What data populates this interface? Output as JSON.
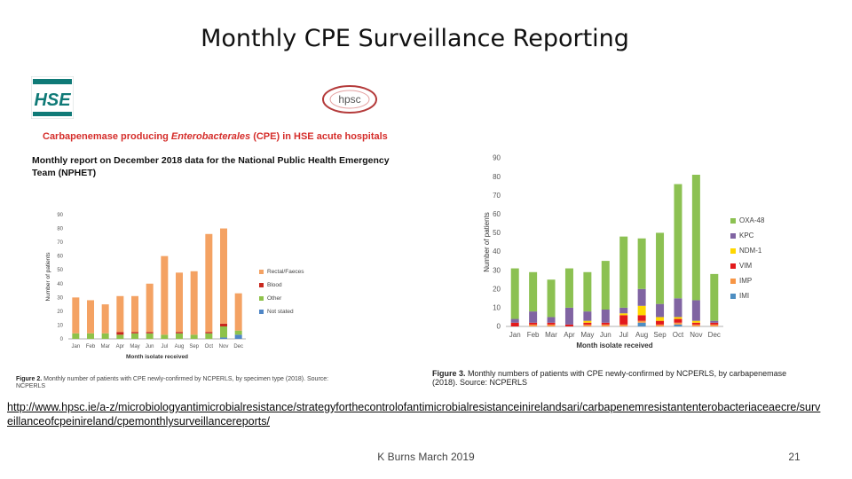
{
  "slide": {
    "title": "Monthly CPE Surveillance Reporting",
    "url": "http://www.hpsc.ie/a-z/microbiologyantimicrobialresistance/strategyforthecontrolofantimicrobialresistanceinirelandsari/carbapenemresistantenterobacteriaceaecre/surveillanceofcpeinireland/cpemonthlysurveillancereports/",
    "footer": "K Burns March 2019",
    "page_number": "21"
  },
  "report": {
    "hse_logo_text": "HSE",
    "hpsc_logo_text": "hpsc",
    "heading_prefix": "Carbapenemase producing ",
    "heading_italic": "Enterobacterales",
    "heading_suffix": " (CPE) in HSE acute hospitals",
    "subheading": "Monthly report on December 2018 data for the National Public Health Emergency Team (NPHET)"
  },
  "colors": {
    "orange": "#f4a263",
    "red": "#c8281e",
    "green_other": "#8ec24a",
    "blue": "#4f86c6",
    "oxa": "#8cc152",
    "kpc": "#8064a2",
    "ndm": "#ffd700",
    "vim": "#e31a1c",
    "imp": "#f79646",
    "imi": "#4e8ec2"
  },
  "chart_data": [
    {
      "type": "bar",
      "stacked": true,
      "title": "",
      "xlabel": "Month isolate received",
      "ylabel": "Number of patients",
      "ylim": [
        0,
        90
      ],
      "yticks": [
        0,
        10,
        20,
        30,
        40,
        50,
        60,
        70,
        80,
        90
      ],
      "categories": [
        "Jan",
        "Feb",
        "Mar",
        "Apr",
        "May",
        "Jun",
        "Jul",
        "Aug",
        "Sep",
        "Oct",
        "Nov",
        "Dec"
      ],
      "series": [
        {
          "name": "Not stated",
          "color": "#4f86c6",
          "values": [
            0,
            0,
            0,
            0,
            0,
            0,
            0,
            0,
            0,
            0,
            1,
            3
          ]
        },
        {
          "name": "Other",
          "color": "#8ec24a",
          "values": [
            4,
            4,
            4,
            3,
            4,
            4,
            3,
            4,
            3,
            4,
            8,
            3
          ]
        },
        {
          "name": "Blood",
          "color": "#c8281e",
          "values": [
            0,
            0,
            0,
            2,
            1,
            1,
            0,
            1,
            0,
            1,
            2,
            0
          ]
        },
        {
          "name": "Rectal/Faeces",
          "color": "#f4a263",
          "values": [
            26,
            24,
            21,
            26,
            26,
            35,
            57,
            43,
            46,
            71,
            69,
            27
          ]
        }
      ],
      "legend": [
        "Rectal/Faeces",
        "Blood",
        "Other",
        "Not stated"
      ],
      "legend_position": "right",
      "caption_label": "Figure 2.",
      "caption": " Monthly number of patients with CPE newly-confirmed by NCPERLS, by specimen type (2018). Source: NCPERLS"
    },
    {
      "type": "bar",
      "stacked": true,
      "title": "",
      "xlabel": "Month isolate received",
      "ylabel": "Number of patients",
      "ylim": [
        0,
        90
      ],
      "yticks": [
        0,
        10,
        20,
        30,
        40,
        50,
        60,
        70,
        80,
        90
      ],
      "categories": [
        "Jan",
        "Feb",
        "Mar",
        "Apr",
        "May",
        "Jun",
        "Jul",
        "Aug",
        "Sep",
        "Oct",
        "Nov",
        "Dec"
      ],
      "series": [
        {
          "name": "IMI",
          "color": "#4e8ec2",
          "values": [
            0,
            0,
            0,
            0,
            0,
            0,
            0,
            2,
            0,
            1,
            0,
            0
          ]
        },
        {
          "name": "IMP",
          "color": "#f79646",
          "values": [
            0,
            1,
            1,
            0,
            1,
            1,
            1,
            1,
            1,
            1,
            1,
            1
          ]
        },
        {
          "name": "VIM",
          "color": "#e31a1c",
          "values": [
            2,
            1,
            1,
            1,
            1,
            1,
            5,
            3,
            2,
            2,
            1,
            1
          ]
        },
        {
          "name": "NDM-1",
          "color": "#ffd700",
          "values": [
            0,
            0,
            0,
            0,
            1,
            0,
            1,
            5,
            2,
            1,
            1,
            0
          ]
        },
        {
          "name": "KPC",
          "color": "#8064a2",
          "values": [
            2,
            6,
            3,
            9,
            5,
            7,
            3,
            9,
            7,
            10,
            11,
            1
          ]
        },
        {
          "name": "OXA-48",
          "color": "#8cc152",
          "values": [
            27,
            21,
            20,
            21,
            21,
            26,
            38,
            27,
            38,
            61,
            67,
            25
          ]
        }
      ],
      "legend": [
        "OXA-48",
        "KPC",
        "NDM-1",
        "VIM",
        "IMP",
        "IMI"
      ],
      "legend_position": "right",
      "caption_label": "Figure 3.",
      "caption": " Monthly numbers of patients with CPE newly-confirmed by NCPERLS, by carbapenemase (2018). Source: NCPERLS"
    }
  ]
}
